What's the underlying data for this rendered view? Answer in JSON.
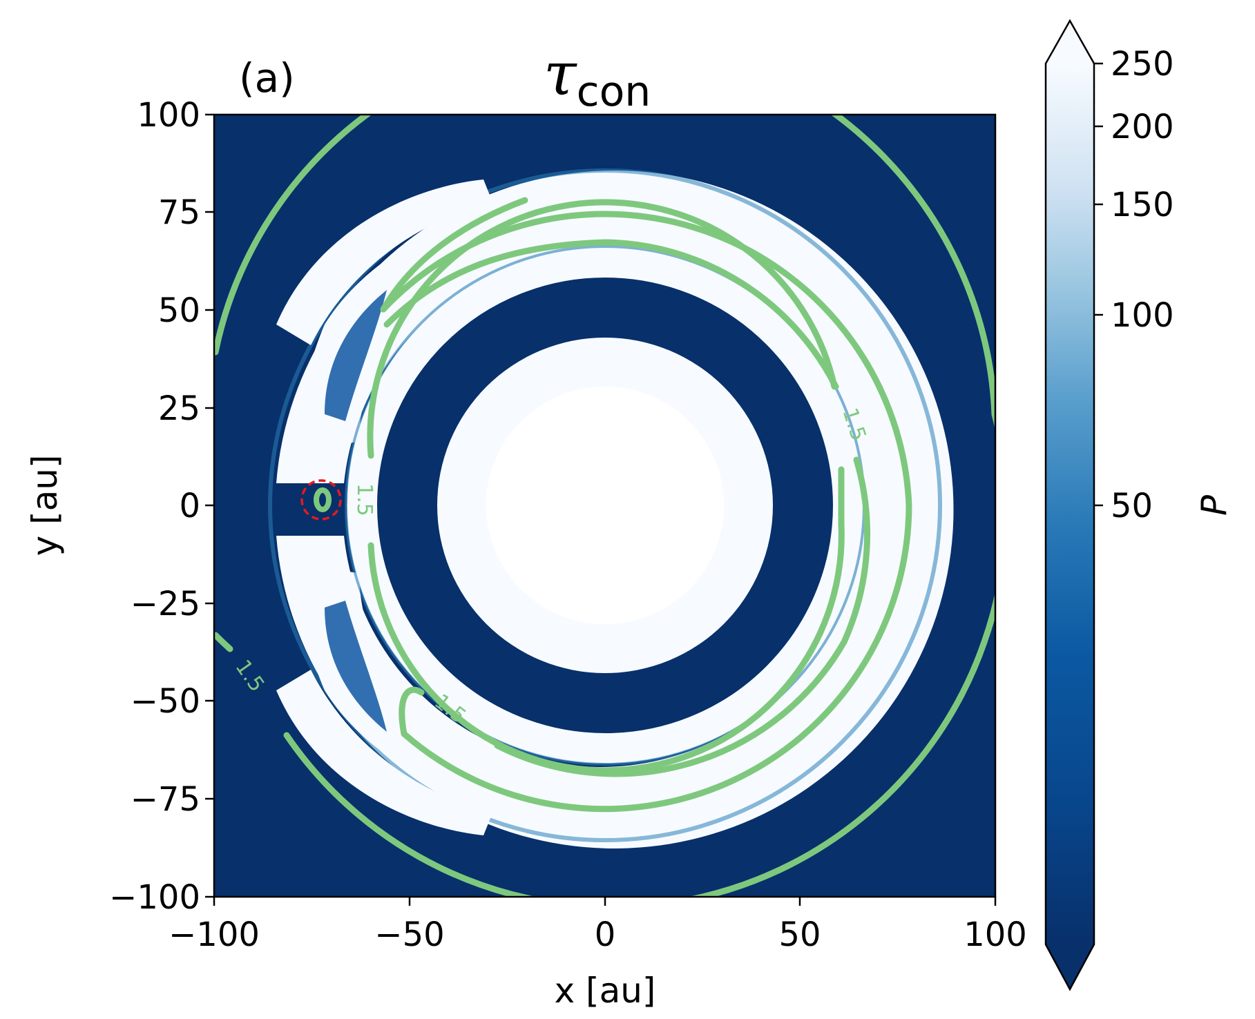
{
  "chart_data": {
    "type": "heatmap",
    "panel_label": "(a)",
    "title": "τ",
    "title_subscript": "con",
    "xlabel": "x [au]",
    "ylabel": "y [au]",
    "xlim": [
      -100,
      100
    ],
    "ylim": [
      -100,
      100
    ],
    "xticks": [
      "−100",
      "−50",
      "0",
      "50",
      "100"
    ],
    "yticks": [
      "100",
      "75",
      "50",
      "25",
      "0",
      "−25",
      "−50",
      "−75",
      "−100"
    ],
    "colorbar": {
      "label": "P",
      "ticks": [
        "250",
        "200",
        "150",
        "100",
        "50"
      ],
      "tick_values": [
        250,
        200,
        150,
        100,
        50
      ],
      "range": [
        20,
        250
      ],
      "extend": "both",
      "colormap": "Blues_r"
    },
    "contour": {
      "level_label": "1.5",
      "color": "#7ec87e",
      "label_positions": [
        "upper-right",
        "center-left",
        "lower-left",
        "lower-middle"
      ]
    },
    "planet_marker": {
      "x": -73,
      "y": 0,
      "color": "#e31a1c"
    },
    "colors": {
      "background": "#08306b",
      "high": "#f7fbff",
      "mid": "#2171b5",
      "contour": "#7ec87e",
      "marker": "#e31a1c"
    }
  }
}
